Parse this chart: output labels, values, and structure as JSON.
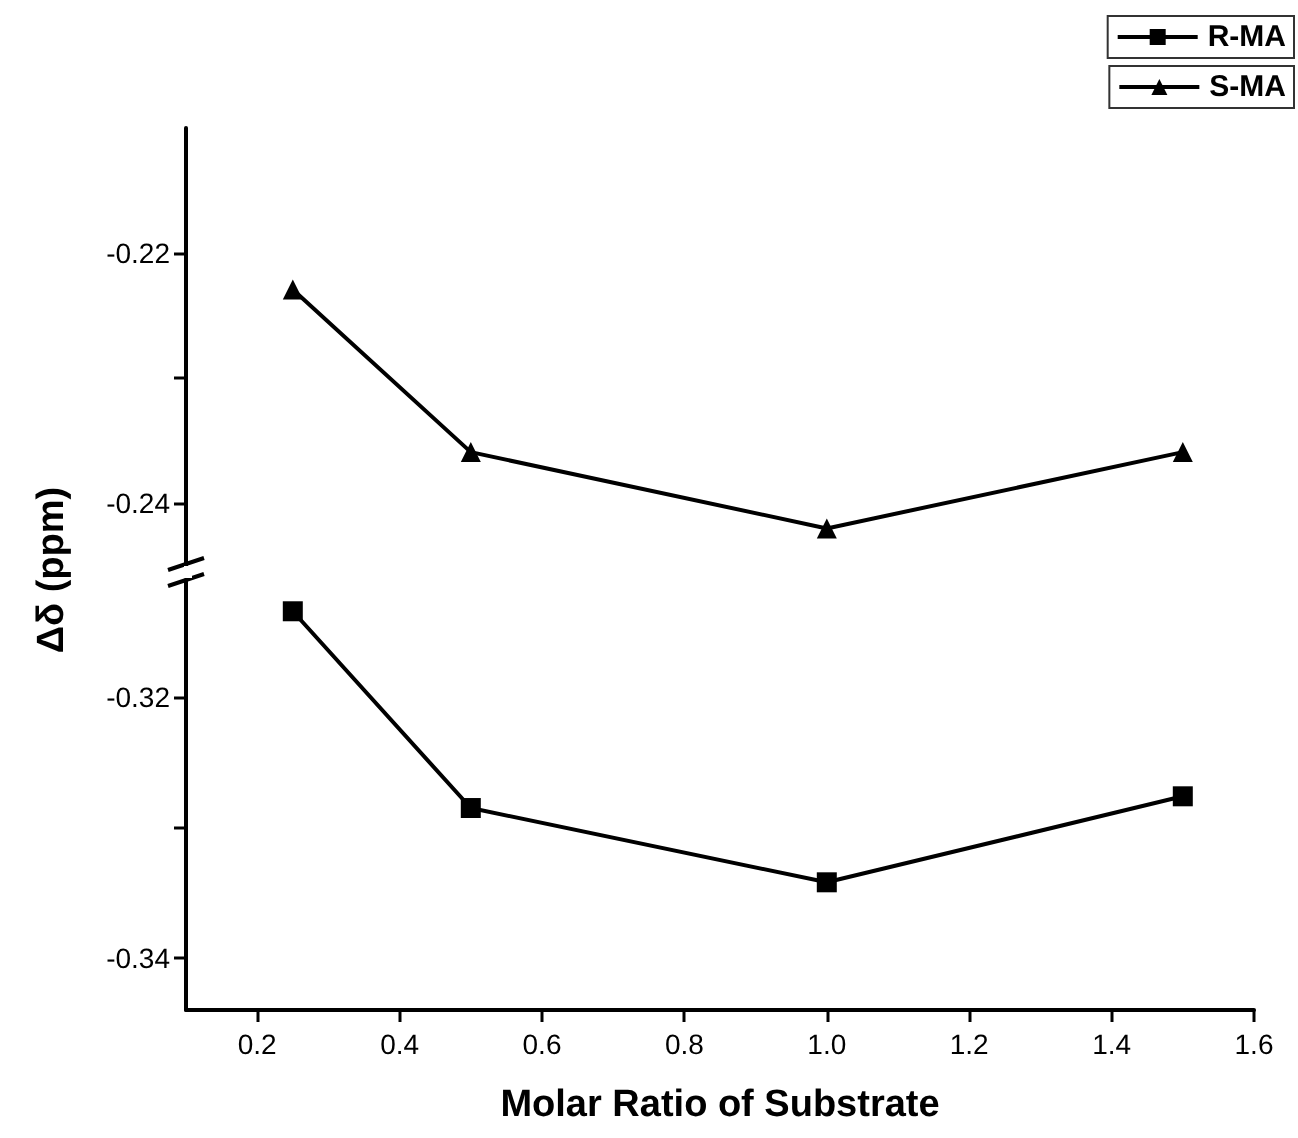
{
  "chart_data": [
    {
      "type": "line",
      "x": [
        0.25,
        0.5,
        1.0,
        1.5
      ],
      "xlim": [
        0.1,
        1.6
      ],
      "ylim": [
        -0.245,
        -0.21
      ],
      "yticks": [
        -0.24,
        {
          "value": -0.23,
          "label": null
        },
        -0.22
      ],
      "tick_labels": "y",
      "legend": "top right",
      "grid": false,
      "series": [
        {
          "name": "S-MA",
          "color": "#000000",
          "marker": "triangle",
          "values": [
            -0.2229,
            -0.2359,
            -0.242,
            -0.2359
          ]
        }
      ]
    },
    {
      "type": "line",
      "x": [
        0.25,
        0.5,
        1.0,
        1.5
      ],
      "xlabel": "Molar Ratio of Substrate",
      "ylabel": "Δδ (ppm)",
      "xlim": [
        0.1,
        1.6
      ],
      "xticks": [
        0.2,
        0.4,
        0.6,
        0.8,
        {
          "value": 1.0,
          "label": "1.0"
        },
        1.2,
        1.4,
        1.6
      ],
      "ylim": [
        -0.344,
        -0.311
      ],
      "yticks": [
        -0.34,
        {
          "value": -0.33,
          "label": null
        },
        -0.32
      ],
      "legend": "top right",
      "grid": false,
      "series": [
        {
          "name": "R-MA",
          "color": "#000000",
          "marker": "square",
          "values": [
            -0.3134,
            -0.3285,
            -0.3342,
            -0.3276
          ]
        }
      ]
    }
  ]
}
